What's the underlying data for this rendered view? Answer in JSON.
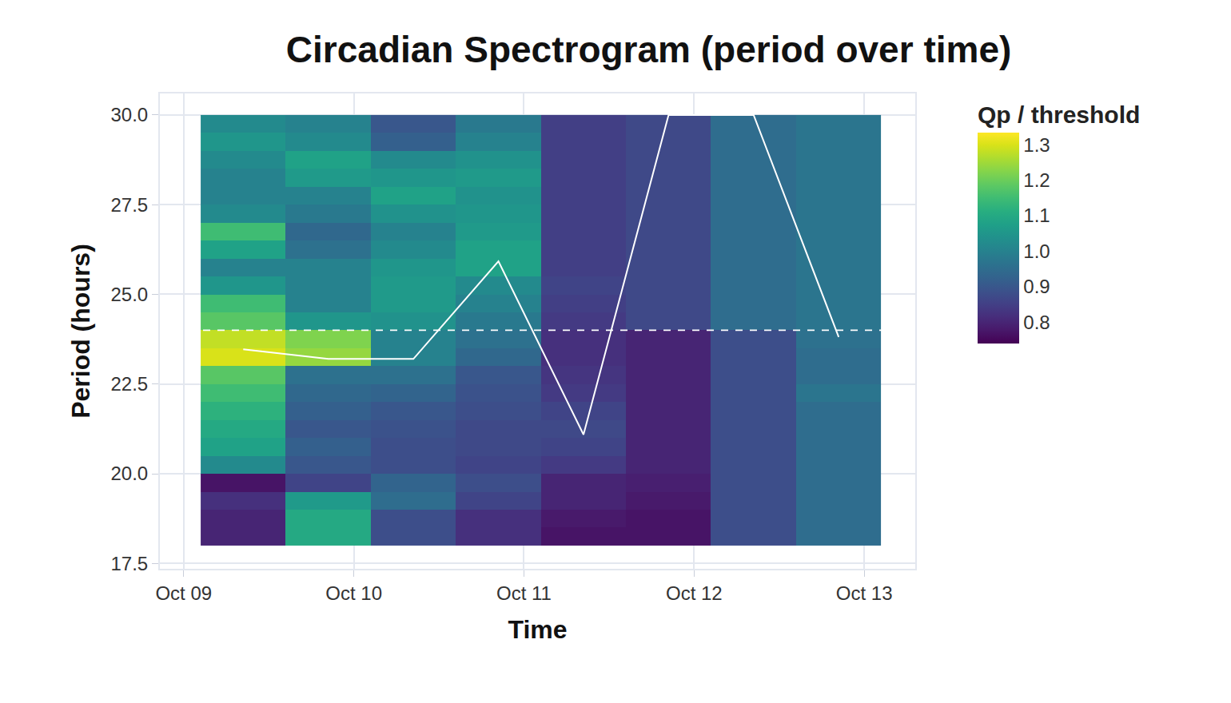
{
  "chart_data": {
    "type": "heatmap",
    "title": "Circadian Spectrogram (period over time)",
    "x_label": "Time",
    "y_label": "Period (hours)",
    "x": [
      0.35,
      0.85,
      1.35,
      1.85,
      2.35,
      2.85,
      3.35,
      3.85
    ],
    "y": [
      18.25,
      18.75,
      19.25,
      19.75,
      20.25,
      20.75,
      21.25,
      21.75,
      22.25,
      22.75,
      23.25,
      23.75,
      24.25,
      24.75,
      25.25,
      25.75,
      26.25,
      26.75,
      27.25,
      27.75,
      28.25,
      28.75,
      29.25,
      29.75
    ],
    "z": [
      [
        0.8,
        1.1,
        0.88,
        0.82,
        0.77,
        0.77,
        0.88,
        0.95
      ],
      [
        0.8,
        1.1,
        0.88,
        0.82,
        0.78,
        0.77,
        0.88,
        0.95
      ],
      [
        0.82,
        1.06,
        0.95,
        0.86,
        0.8,
        0.78,
        0.88,
        0.95
      ],
      [
        0.77,
        0.86,
        0.93,
        0.88,
        0.8,
        0.79,
        0.88,
        0.95
      ],
      [
        1.02,
        0.9,
        0.88,
        0.86,
        0.84,
        0.8,
        0.88,
        0.95
      ],
      [
        1.08,
        0.92,
        0.88,
        0.87,
        0.86,
        0.8,
        0.88,
        0.95
      ],
      [
        1.1,
        0.9,
        0.89,
        0.87,
        0.87,
        0.8,
        0.88,
        0.95
      ],
      [
        1.12,
        0.92,
        0.9,
        0.88,
        0.86,
        0.8,
        0.88,
        0.95
      ],
      [
        1.15,
        0.94,
        0.93,
        0.89,
        0.84,
        0.8,
        0.88,
        0.97
      ],
      [
        1.18,
        0.96,
        0.96,
        0.9,
        0.83,
        0.8,
        0.88,
        0.95
      ],
      [
        1.3,
        1.24,
        1.0,
        0.94,
        0.82,
        0.8,
        0.88,
        0.95
      ],
      [
        1.28,
        1.22,
        1.0,
        0.96,
        0.82,
        0.8,
        0.88,
        0.96
      ],
      [
        1.18,
        1.05,
        1.04,
        0.98,
        0.84,
        0.87,
        0.95,
        0.97
      ],
      [
        1.15,
        1.0,
        1.06,
        1.0,
        0.85,
        0.87,
        0.95,
        0.97
      ],
      [
        1.05,
        1.0,
        1.06,
        1.02,
        0.86,
        0.87,
        0.95,
        0.97
      ],
      [
        1.0,
        1.0,
        1.05,
        1.08,
        0.85,
        0.87,
        0.95,
        0.97
      ],
      [
        1.08,
        0.96,
        1.02,
        1.08,
        0.85,
        0.87,
        0.95,
        0.97
      ],
      [
        1.15,
        0.94,
        1.0,
        1.06,
        0.85,
        0.87,
        0.95,
        0.97
      ],
      [
        1.02,
        0.98,
        1.04,
        1.05,
        0.85,
        0.87,
        0.95,
        0.97
      ],
      [
        1.0,
        1.0,
        1.08,
        1.04,
        0.85,
        0.87,
        0.95,
        0.97
      ],
      [
        1.0,
        1.06,
        1.05,
        1.06,
        0.85,
        0.87,
        0.95,
        0.97
      ],
      [
        1.02,
        1.08,
        1.02,
        1.04,
        0.85,
        0.87,
        0.95,
        0.97
      ],
      [
        1.05,
        1.02,
        0.92,
        1.0,
        0.85,
        0.87,
        0.95,
        0.97
      ],
      [
        1.02,
        1.0,
        0.9,
        0.98,
        0.85,
        0.87,
        0.95,
        0.97
      ]
    ],
    "color": "Viridis",
    "colorbar": {
      "title": "Qp / threshold",
      "range": [
        0.74,
        1.334
      ],
      "ticks": [
        0.8,
        0.9,
        {
          "value": 1.0,
          "label": "1.0"
        },
        1.1,
        1.2,
        1.3
      ]
    },
    "series": [
      {
        "type": "line",
        "color": "#ffffff",
        "values": [
          23.47,
          23.2,
          23.2,
          25.92,
          21.09,
          30,
          30,
          23.81
        ]
      }
    ],
    "reference_line": {
      "value": 24,
      "color": "#ffffff",
      "line_style": "dash"
    },
    "xlim": [
      -0.14,
      4.3
    ],
    "xticks": [
      {
        "value": 0,
        "label": "Oct 09"
      },
      {
        "value": 1,
        "label": "Oct 10"
      },
      {
        "value": 2,
        "label": "Oct 11"
      },
      {
        "value": 3,
        "label": "Oct 12"
      },
      {
        "value": 4,
        "label": "Oct 13"
      }
    ],
    "ylim": [
      17.35,
      30.6
    ],
    "yticks": [
      17.5,
      {
        "value": 20,
        "label": "20.0"
      },
      22.5,
      {
        "value": 25,
        "label": "25.0"
      },
      27.5,
      {
        "value": 30,
        "label": "30.0"
      }
    ],
    "grid": true
  }
}
